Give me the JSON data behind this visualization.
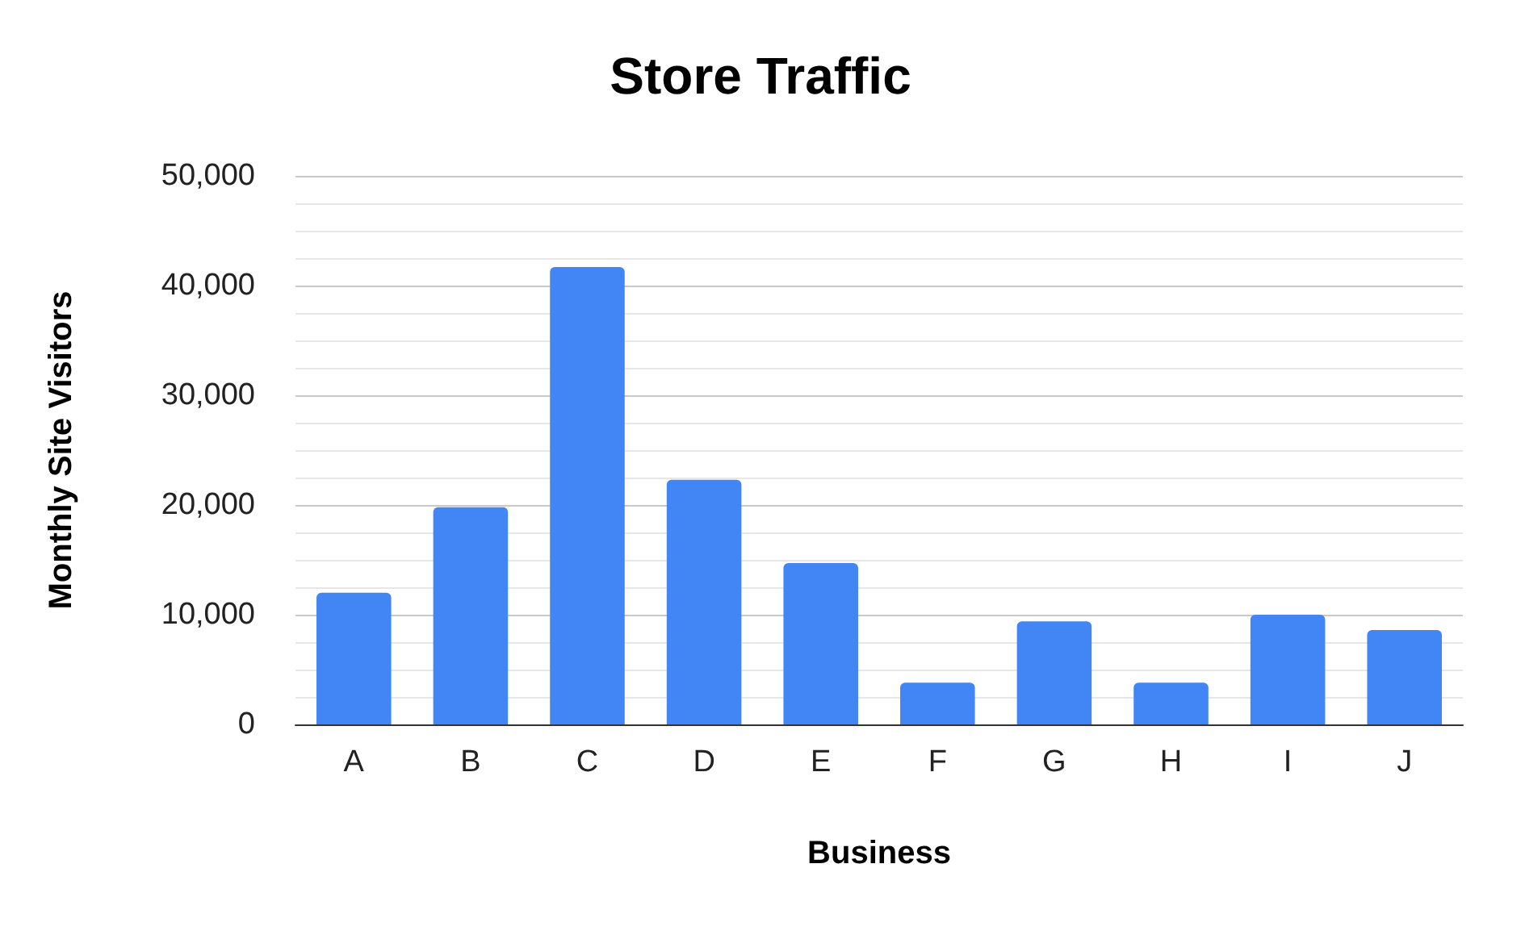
{
  "chart_data": {
    "type": "bar",
    "title": "Store Traffic",
    "xlabel": "Business",
    "ylabel": "Monthly Site Visitors",
    "categories": [
      "A",
      "B",
      "C",
      "D",
      "E",
      "F",
      "G",
      "H",
      "I",
      "J"
    ],
    "values": [
      12000,
      19800,
      41700,
      22300,
      14700,
      3800,
      9400,
      3800,
      10000,
      8600
    ],
    "color": "#4285f4",
    "ylim": [
      0,
      50000
    ],
    "yticks": [
      0,
      {
        "value": 10000,
        "label": "10,000"
      },
      {
        "value": 20000,
        "label": "20,000"
      },
      {
        "value": 30000,
        "label": "30,000"
      },
      {
        "value": 40000,
        "label": "40,000"
      },
      {
        "value": 50000,
        "label": "50,000"
      }
    ],
    "grid": "y"
  }
}
